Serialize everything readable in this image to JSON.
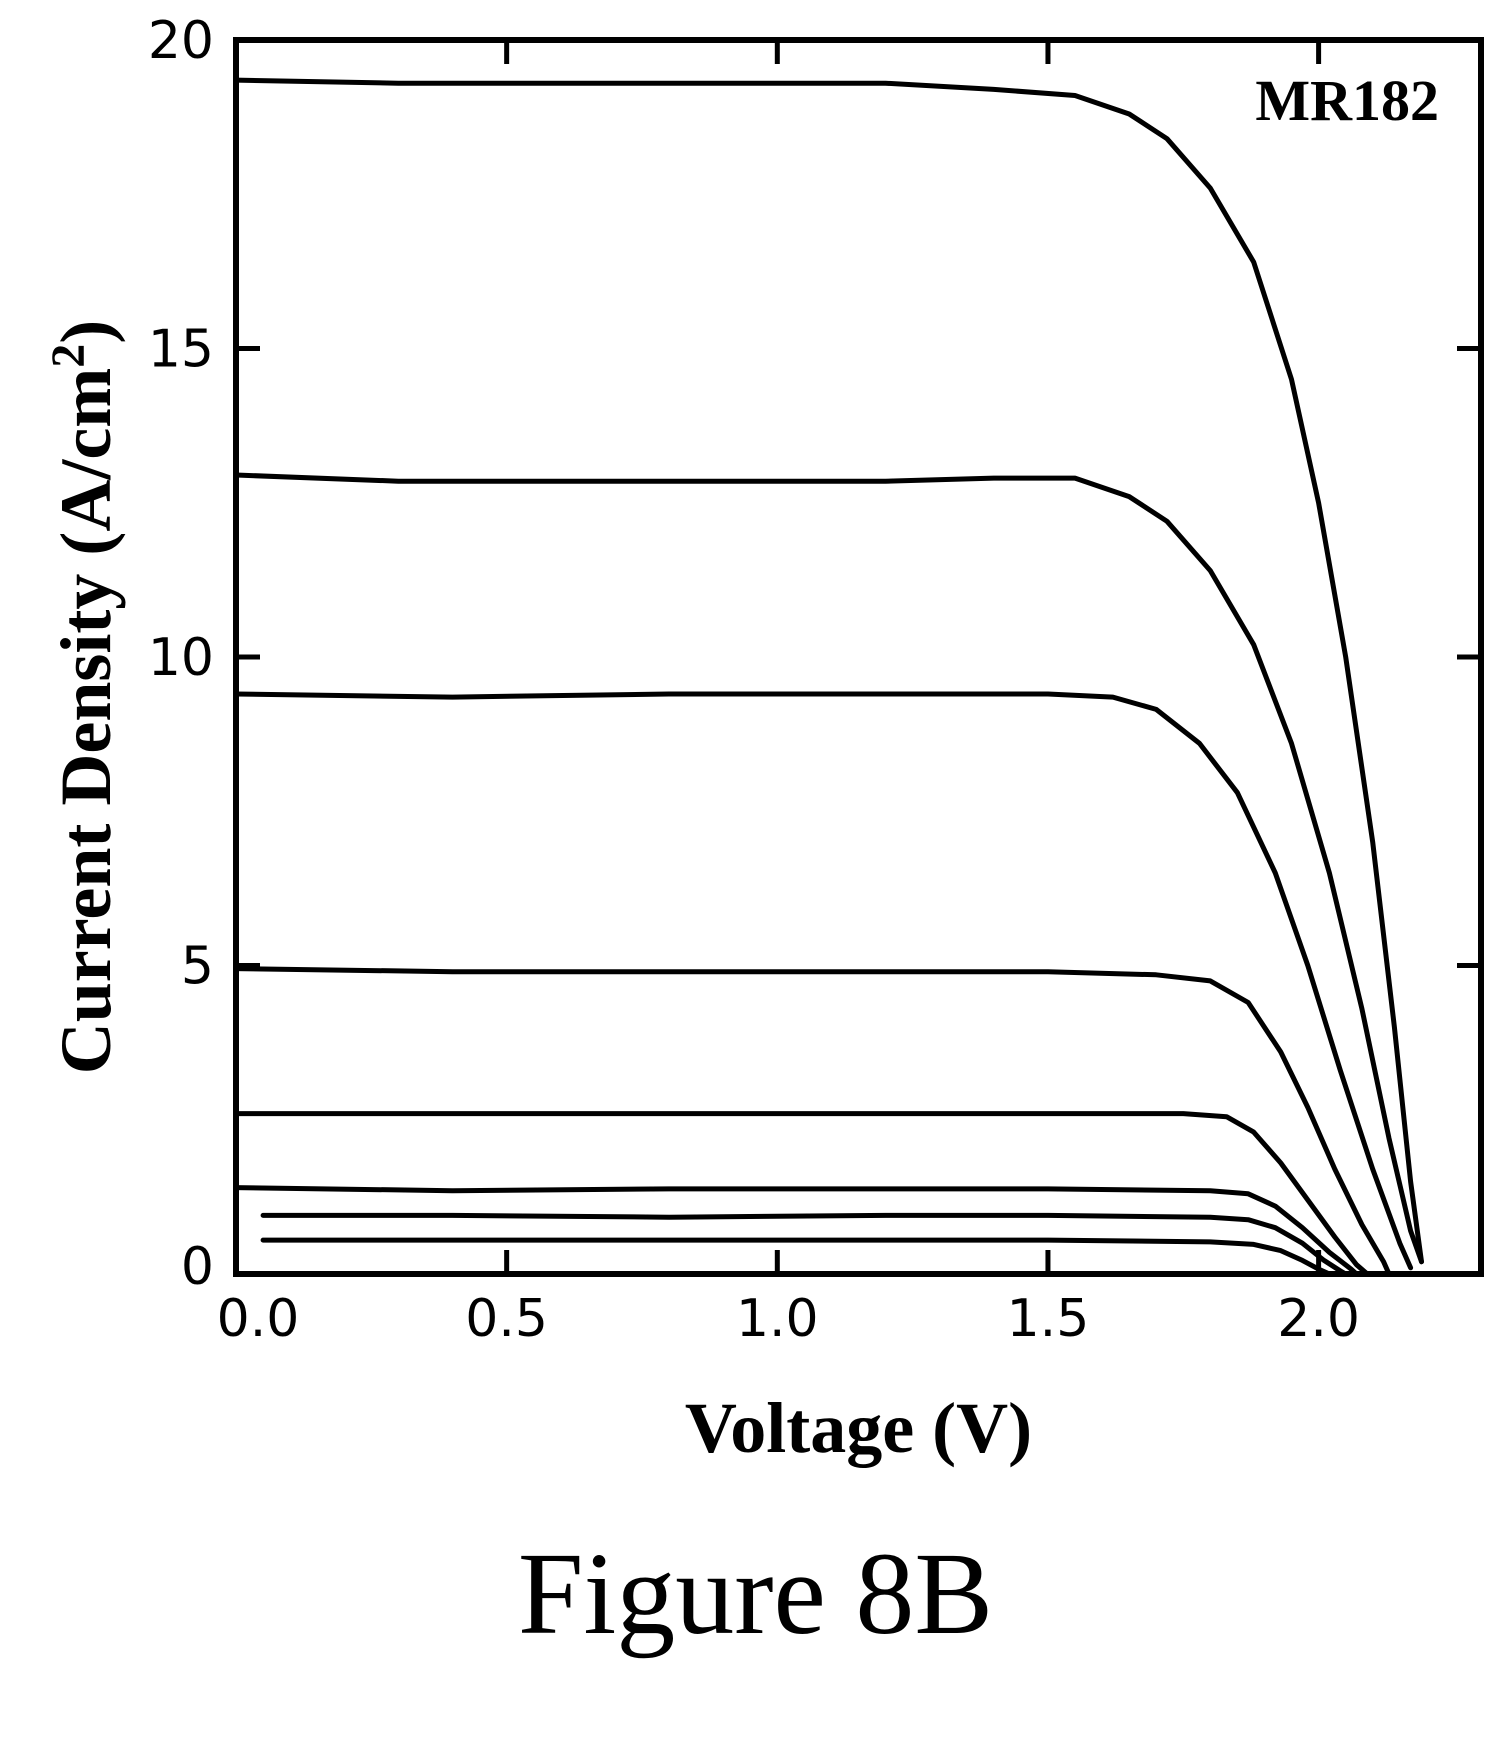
{
  "caption": "Figure 8B",
  "chart_data": {
    "type": "line",
    "title": "",
    "xlabel": "Voltage (V)",
    "ylabel_main": "Current Density (A/cm",
    "ylabel_sup": "2",
    "ylabel_close": ")",
    "annotation": "MR182",
    "xlim": [
      0,
      2.3
    ],
    "ylim": [
      0,
      20
    ],
    "xticks": [
      0.0,
      0.5,
      1.0,
      1.5,
      2.0
    ],
    "xtick_labels": [
      "0.0",
      "0.5",
      "1.0",
      "1.5",
      "2.0"
    ],
    "yticks": [
      0,
      5,
      10,
      15,
      20
    ],
    "ytick_labels": [
      "0",
      "5",
      "10",
      "15",
      "20"
    ],
    "grid": false,
    "line_color": "#000000",
    "series": [
      {
        "values": [
          [
            0.0,
            19.35
          ],
          [
            0.3,
            19.3
          ],
          [
            0.6,
            19.3
          ],
          [
            0.9,
            19.3
          ],
          [
            1.2,
            19.3
          ],
          [
            1.4,
            19.2
          ],
          [
            1.55,
            19.1
          ],
          [
            1.65,
            18.8
          ],
          [
            1.72,
            18.4
          ],
          [
            1.8,
            17.6
          ],
          [
            1.88,
            16.4
          ],
          [
            1.95,
            14.5
          ],
          [
            2.0,
            12.5
          ],
          [
            2.05,
            10.0
          ],
          [
            2.1,
            7.0
          ],
          [
            2.14,
            4.0
          ],
          [
            2.17,
            1.5
          ],
          [
            2.19,
            0.2
          ]
        ]
      },
      {
        "values": [
          [
            0.0,
            12.95
          ],
          [
            0.3,
            12.85
          ],
          [
            0.6,
            12.85
          ],
          [
            0.9,
            12.85
          ],
          [
            1.2,
            12.85
          ],
          [
            1.4,
            12.9
          ],
          [
            1.55,
            12.9
          ],
          [
            1.65,
            12.6
          ],
          [
            1.72,
            12.2
          ],
          [
            1.8,
            11.4
          ],
          [
            1.88,
            10.2
          ],
          [
            1.95,
            8.6
          ],
          [
            2.02,
            6.5
          ],
          [
            2.08,
            4.3
          ],
          [
            2.13,
            2.2
          ],
          [
            2.17,
            0.7
          ],
          [
            2.19,
            0.2
          ]
        ]
      },
      {
        "values": [
          [
            0.0,
            9.4
          ],
          [
            0.4,
            9.35
          ],
          [
            0.8,
            9.4
          ],
          [
            1.2,
            9.4
          ],
          [
            1.5,
            9.4
          ],
          [
            1.62,
            9.35
          ],
          [
            1.7,
            9.15
          ],
          [
            1.78,
            8.6
          ],
          [
            1.85,
            7.8
          ],
          [
            1.92,
            6.5
          ],
          [
            1.98,
            5.0
          ],
          [
            2.04,
            3.3
          ],
          [
            2.1,
            1.7
          ],
          [
            2.15,
            0.5
          ],
          [
            2.17,
            0.1
          ]
        ]
      },
      {
        "values": [
          [
            0.0,
            4.95
          ],
          [
            0.4,
            4.9
          ],
          [
            0.8,
            4.9
          ],
          [
            1.2,
            4.9
          ],
          [
            1.5,
            4.9
          ],
          [
            1.7,
            4.85
          ],
          [
            1.8,
            4.75
          ],
          [
            1.87,
            4.4
          ],
          [
            1.93,
            3.6
          ],
          [
            1.98,
            2.7
          ],
          [
            2.03,
            1.7
          ],
          [
            2.08,
            0.8
          ],
          [
            2.12,
            0.2
          ],
          [
            2.13,
            0.0
          ]
        ]
      },
      {
        "values": [
          [
            0.0,
            2.6
          ],
          [
            0.4,
            2.6
          ],
          [
            0.8,
            2.6
          ],
          [
            1.2,
            2.6
          ],
          [
            1.5,
            2.6
          ],
          [
            1.75,
            2.6
          ],
          [
            1.83,
            2.55
          ],
          [
            1.88,
            2.3
          ],
          [
            1.93,
            1.8
          ],
          [
            1.98,
            1.2
          ],
          [
            2.03,
            0.6
          ],
          [
            2.07,
            0.15
          ],
          [
            2.09,
            0.0
          ]
        ]
      },
      {
        "values": [
          [
            0.0,
            1.4
          ],
          [
            0.4,
            1.35
          ],
          [
            0.8,
            1.38
          ],
          [
            1.2,
            1.38
          ],
          [
            1.5,
            1.38
          ],
          [
            1.8,
            1.35
          ],
          [
            1.87,
            1.3
          ],
          [
            1.92,
            1.1
          ],
          [
            1.97,
            0.75
          ],
          [
            2.02,
            0.35
          ],
          [
            2.06,
            0.08
          ],
          [
            2.07,
            0.0
          ]
        ]
      },
      {
        "values": [
          [
            0.05,
            0.95
          ],
          [
            0.4,
            0.95
          ],
          [
            0.8,
            0.92
          ],
          [
            1.2,
            0.95
          ],
          [
            1.5,
            0.95
          ],
          [
            1.8,
            0.92
          ],
          [
            1.87,
            0.88
          ],
          [
            1.92,
            0.75
          ],
          [
            1.97,
            0.5
          ],
          [
            2.01,
            0.22
          ],
          [
            2.04,
            0.05
          ],
          [
            2.05,
            0.0
          ]
        ]
      },
      {
        "values": [
          [
            0.05,
            0.55
          ],
          [
            0.4,
            0.55
          ],
          [
            0.8,
            0.55
          ],
          [
            1.2,
            0.55
          ],
          [
            1.5,
            0.55
          ],
          [
            1.8,
            0.52
          ],
          [
            1.88,
            0.48
          ],
          [
            1.93,
            0.38
          ],
          [
            1.97,
            0.22
          ],
          [
            2.0,
            0.08
          ],
          [
            2.02,
            0.0
          ]
        ]
      }
    ]
  }
}
